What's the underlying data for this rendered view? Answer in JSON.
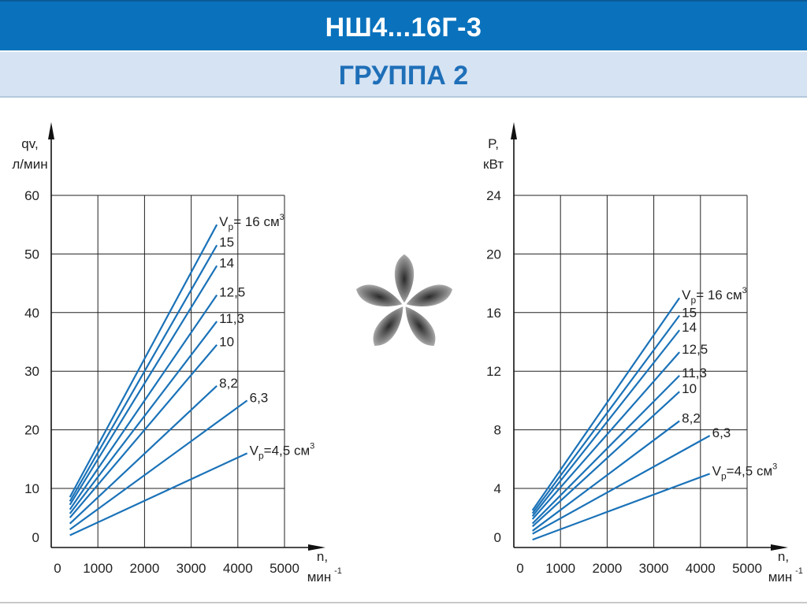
{
  "header": {
    "title": "НШ4...16Г-3"
  },
  "subheader": {
    "title": "ГРУППА 2"
  },
  "colors": {
    "header_bg": "#0a72bd",
    "subheader_bg": "#d5e3f3",
    "subheader_text": "#1e6fb8",
    "line": "#1a72b8"
  },
  "logo": {
    "icon": "asterisk-logo-icon"
  },
  "chart_data": [
    {
      "type": "line",
      "ylabel_line1": "qv,",
      "ylabel_line2": "л/мин",
      "xlabel_line1": "n,",
      "xlabel_line2": "мин",
      "xlabel_sup": "-1",
      "xlim": [
        0,
        5000
      ],
      "ylim": [
        0,
        60
      ],
      "xticks": [
        0,
        1000,
        2000,
        3000,
        4000,
        5000
      ],
      "yticks": [
        0,
        10,
        20,
        30,
        40,
        50,
        60
      ],
      "grid": true,
      "series": [
        {
          "name": "Vp= 16 см3",
          "label_main": "V",
          "label_sub": "p",
          "label_rest": "= 16 см",
          "label_sup": "3",
          "x": [
            400,
            3550
          ],
          "y": [
            8.5,
            55
          ]
        },
        {
          "name": "15",
          "label_main": "15",
          "x": [
            400,
            3550
          ],
          "y": [
            7.8,
            51.5
          ]
        },
        {
          "name": "14",
          "label_main": "14",
          "x": [
            400,
            3550
          ],
          "y": [
            7.2,
            48
          ]
        },
        {
          "name": "12,5",
          "label_main": "12,5",
          "x": [
            400,
            3550
          ],
          "y": [
            6.4,
            43
          ]
        },
        {
          "name": "11,3",
          "label_main": "11,3",
          "x": [
            400,
            3550
          ],
          "y": [
            5.7,
            38.5
          ]
        },
        {
          "name": "10",
          "label_main": "10",
          "x": [
            400,
            3550
          ],
          "y": [
            5.0,
            34.5
          ]
        },
        {
          "name": "8,2",
          "label_main": "8,2",
          "x": [
            400,
            3550
          ],
          "y": [
            4.0,
            27.5
          ]
        },
        {
          "name": "6,3",
          "label_main": "6,3",
          "x": [
            400,
            4200
          ],
          "y": [
            3.0,
            25
          ]
        },
        {
          "name": "Vp=4,5 см3",
          "label_main": "V",
          "label_sub": "p",
          "label_rest": "=4,5 см",
          "label_sup": "3",
          "x": [
            400,
            4200
          ],
          "y": [
            2.0,
            16
          ]
        }
      ]
    },
    {
      "type": "line",
      "ylabel_line1": "P,",
      "ylabel_line2": "кВт",
      "xlabel_line1": "n,",
      "xlabel_line2": "мин",
      "xlabel_sup": "-1",
      "xlim": [
        0,
        5000
      ],
      "ylim": [
        0,
        24
      ],
      "xticks": [
        0,
        1000,
        2000,
        3000,
        4000,
        5000
      ],
      "yticks": [
        0,
        4,
        8,
        12,
        16,
        20,
        24
      ],
      "grid": true,
      "series": [
        {
          "name": "Vp= 16 см3",
          "label_main": "V",
          "label_sub": "p",
          "label_rest": "= 16 см",
          "label_sup": "3",
          "x": [
            400,
            3550
          ],
          "y": [
            2.5,
            17
          ]
        },
        {
          "name": "15",
          "label_main": "15",
          "x": [
            400,
            3550
          ],
          "y": [
            2.3,
            15.8
          ]
        },
        {
          "name": "14",
          "label_main": "14",
          "x": [
            400,
            3550
          ],
          "y": [
            2.1,
            14.8
          ]
        },
        {
          "name": "12,5",
          "label_main": "12,5",
          "x": [
            400,
            3550
          ],
          "y": [
            1.9,
            13.3
          ]
        },
        {
          "name": "11,3",
          "label_main": "11,3",
          "x": [
            400,
            3550
          ],
          "y": [
            1.6,
            11.7
          ]
        },
        {
          "name": "10",
          "label_main": "10",
          "x": [
            400,
            3550
          ],
          "y": [
            1.4,
            10.6
          ]
        },
        {
          "name": "8,2",
          "label_main": "8,2",
          "x": [
            400,
            3550
          ],
          "y": [
            1.1,
            8.6
          ]
        },
        {
          "name": "6,3",
          "label_main": "6,3",
          "x": [
            400,
            4200
          ],
          "y": [
            0.9,
            7.6
          ]
        },
        {
          "name": "Vp=4,5 см3",
          "label_main": "V",
          "label_sub": "p",
          "label_rest": "=4,5 см",
          "label_sup": "3",
          "x": [
            400,
            4200
          ],
          "y": [
            0.5,
            5.0
          ]
        }
      ]
    }
  ]
}
